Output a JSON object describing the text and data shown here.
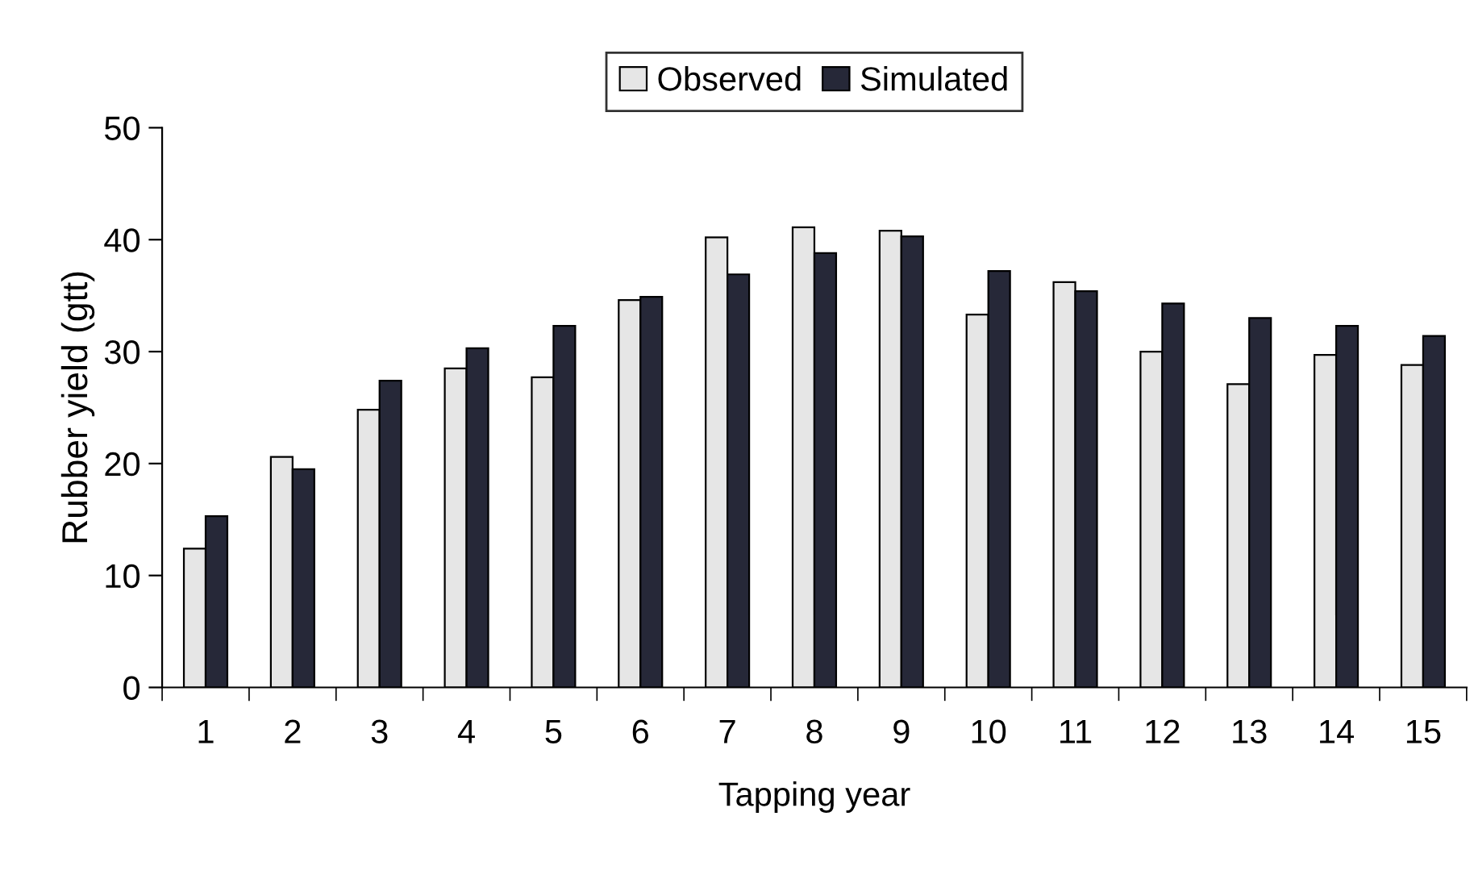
{
  "chart_data": {
    "type": "bar",
    "xlabel": "Tapping year",
    "ylabel": "Rubber yield (gtt)",
    "categories": [
      "1",
      "2",
      "3",
      "4",
      "5",
      "6",
      "7",
      "8",
      "9",
      "10",
      "11",
      "12",
      "13",
      "14",
      "15"
    ],
    "series": [
      {
        "name": "Observed",
        "color": "#e6e6e6",
        "values": [
          12.4,
          20.6,
          24.8,
          28.5,
          27.7,
          34.6,
          40.2,
          41.1,
          40.8,
          33.3,
          36.2,
          30.0,
          27.1,
          29.7,
          28.8
        ]
      },
      {
        "name": "Simulated",
        "color": "#262838",
        "values": [
          15.3,
          19.5,
          27.4,
          30.3,
          32.3,
          34.9,
          36.9,
          38.8,
          40.3,
          37.2,
          35.4,
          34.3,
          33.0,
          32.3,
          31.4
        ]
      }
    ],
    "ylim": [
      0,
      50
    ],
    "yticks": [
      0,
      10,
      20,
      30,
      40,
      50
    ],
    "grid": false,
    "legend": "top"
  }
}
